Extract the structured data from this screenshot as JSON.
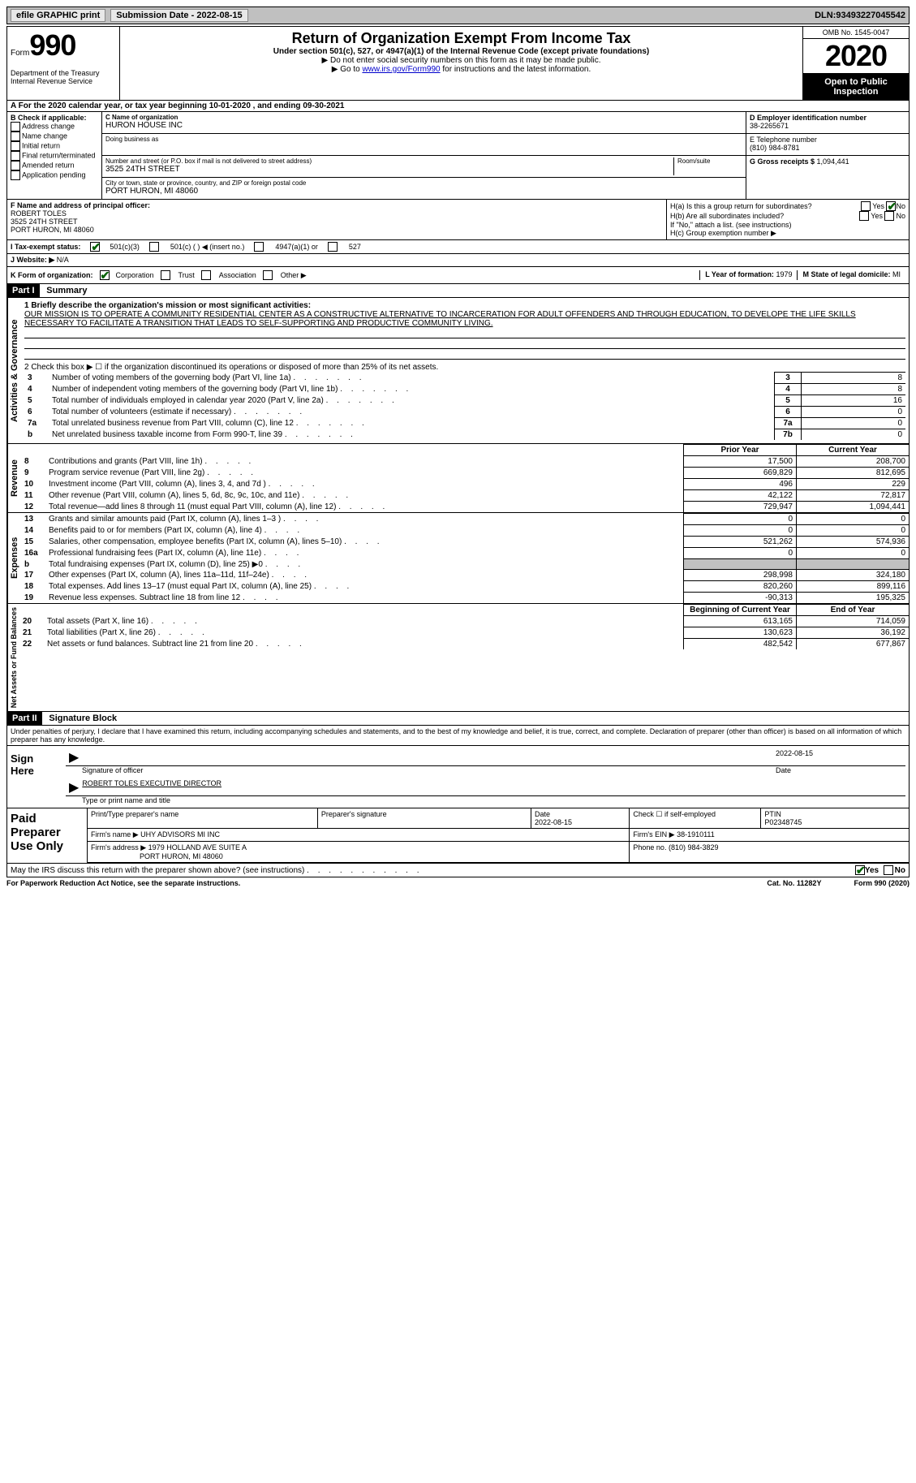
{
  "topbar": {
    "efile": "efile GRAPHIC print",
    "submission_label": "Submission Date - ",
    "submission_date": "2022-08-15",
    "dln_label": "DLN: ",
    "dln": "93493227045542"
  },
  "header": {
    "form_word": "Form",
    "form_num": "990",
    "dept": "Department of the Treasury\nInternal Revenue Service",
    "title": "Return of Organization Exempt From Income Tax",
    "subtitle": "Under section 501(c), 527, or 4947(a)(1) of the Internal Revenue Code (except private foundations)",
    "note1": "▶ Do not enter social security numbers on this form as it may be made public.",
    "note2_pre": "▶ Go to ",
    "note2_link": "www.irs.gov/Form990",
    "note2_post": " for instructions and the latest information.",
    "omb": "OMB No. 1545-0047",
    "year": "2020",
    "inspect": "Open to Public Inspection"
  },
  "rowA": "A For the 2020 calendar year, or tax year beginning 10-01-2020   , and ending 09-30-2021",
  "sectionB": {
    "header": "B Check if applicable:",
    "items": [
      "Address change",
      "Name change",
      "Initial return",
      "Final return/terminated",
      "Amended return",
      "Application pending"
    ],
    "c_label": "C Name of organization",
    "c_name": "HURON HOUSE INC",
    "dba_label": "Doing business as",
    "dba": "",
    "addr_label": "Number and street (or P.O. box if mail is not delivered to street address)",
    "room_label": "Room/suite",
    "addr": "3525 24TH STREET",
    "city_label": "City or town, state or province, country, and ZIP or foreign postal code",
    "city": "PORT HURON, MI  48060",
    "d_label": "D Employer identification number",
    "d_ein": "38-2265671",
    "e_label": "E Telephone number",
    "e_phone": "(810) 984-8781",
    "g_label": "G Gross receipts $ ",
    "g_amount": "1,094,441"
  },
  "sectionF": {
    "f_label": "F Name and address of principal officer:",
    "f_name": "ROBERT TOLES",
    "f_addr1": "3525 24TH STREET",
    "f_addr2": "PORT HURON, MI  48060",
    "ha_label": "H(a)  Is this a group return for subordinates?",
    "ha_yes": "Yes",
    "ha_no": "No",
    "hb_label": "H(b)  Are all subordinates included?",
    "hb_note": "If \"No,\" attach a list. (see instructions)",
    "hc_label": "H(c)  Group exemption number ▶"
  },
  "rowI": {
    "label": "I  Tax-exempt status:",
    "opt1": "501(c)(3)",
    "opt2": "501(c) (  ) ◀ (insert no.)",
    "opt3": "4947(a)(1) or",
    "opt4": "527"
  },
  "rowJ": {
    "label": "J  Website: ▶",
    "value": "N/A"
  },
  "rowK": {
    "label": "K Form of organization:",
    "opts": [
      "Corporation",
      "Trust",
      "Association",
      "Other ▶"
    ],
    "l_label": "L Year of formation: ",
    "l_val": "1979",
    "m_label": "M State of legal domicile: ",
    "m_val": "MI"
  },
  "part1": {
    "tag": "Part I",
    "title": "Summary",
    "vlabel1": "Activities & Governance",
    "line1_label": "1  Briefly describe the organization's mission or most significant activities:",
    "mission": "OUR MISSION IS TO OPERATE A COMMUNITY RESIDENTIAL CENTER AS A CONSTRUCTIVE ALTERNATIVE TO INCARCERATION FOR ADULT OFFENDERS AND THROUGH EDUCATION, TO DEVELOPE THE LIFE SKILLS NECESSARY TO FACILITATE A TRANSITION THAT LEADS TO SELF-SUPPORTING AND PRODUCTIVE COMMUNITY LIVING.",
    "line2": "2   Check this box ▶ ☐  if the organization discontinued its operations or disposed of more than 25% of its net assets.",
    "gov_rows": [
      {
        "n": "3",
        "desc": "Number of voting members of the governing body (Part VI, line 1a)",
        "lbl": "3",
        "val": "8"
      },
      {
        "n": "4",
        "desc": "Number of independent voting members of the governing body (Part VI, line 1b)",
        "lbl": "4",
        "val": "8"
      },
      {
        "n": "5",
        "desc": "Total number of individuals employed in calendar year 2020 (Part V, line 2a)",
        "lbl": "5",
        "val": "16"
      },
      {
        "n": "6",
        "desc": "Total number of volunteers (estimate if necessary)",
        "lbl": "6",
        "val": "0"
      },
      {
        "n": "7a",
        "desc": "Total unrelated business revenue from Part VIII, column (C), line 12",
        "lbl": "7a",
        "val": "0"
      },
      {
        "n": "b",
        "desc": "Net unrelated business taxable income from Form 990-T, line 39",
        "lbl": "7b",
        "val": "0"
      }
    ],
    "col_prior": "Prior Year",
    "col_current": "Current Year",
    "vlabel2": "Revenue",
    "rev_rows": [
      {
        "n": "8",
        "desc": "Contributions and grants (Part VIII, line 1h)",
        "p": "17,500",
        "c": "208,700"
      },
      {
        "n": "9",
        "desc": "Program service revenue (Part VIII, line 2g)",
        "p": "669,829",
        "c": "812,695"
      },
      {
        "n": "10",
        "desc": "Investment income (Part VIII, column (A), lines 3, 4, and 7d )",
        "p": "496",
        "c": "229"
      },
      {
        "n": "11",
        "desc": "Other revenue (Part VIII, column (A), lines 5, 6d, 8c, 9c, 10c, and 11e)",
        "p": "42,122",
        "c": "72,817"
      },
      {
        "n": "12",
        "desc": "Total revenue—add lines 8 through 11 (must equal Part VIII, column (A), line 12)",
        "p": "729,947",
        "c": "1,094,441"
      }
    ],
    "vlabel3": "Expenses",
    "exp_rows": [
      {
        "n": "13",
        "desc": "Grants and similar amounts paid (Part IX, column (A), lines 1–3 )",
        "p": "0",
        "c": "0"
      },
      {
        "n": "14",
        "desc": "Benefits paid to or for members (Part IX, column (A), line 4)",
        "p": "0",
        "c": "0"
      },
      {
        "n": "15",
        "desc": "Salaries, other compensation, employee benefits (Part IX, column (A), lines 5–10)",
        "p": "521,262",
        "c": "574,936"
      },
      {
        "n": "16a",
        "desc": "Professional fundraising fees (Part IX, column (A), line 11e)",
        "p": "0",
        "c": "0"
      },
      {
        "n": "b",
        "desc": "Total fundraising expenses (Part IX, column (D), line 25) ▶0",
        "p": "grey",
        "c": "grey"
      },
      {
        "n": "17",
        "desc": "Other expenses (Part IX, column (A), lines 11a–11d, 11f–24e)",
        "p": "298,998",
        "c": "324,180"
      },
      {
        "n": "18",
        "desc": "Total expenses. Add lines 13–17 (must equal Part IX, column (A), line 25)",
        "p": "820,260",
        "c": "899,116"
      },
      {
        "n": "19",
        "desc": "Revenue less expenses. Subtract line 18 from line 12",
        "p": "-90,313",
        "c": "195,325"
      }
    ],
    "vlabel4": "Net Assets or Fund Balances",
    "col_begin": "Beginning of Current Year",
    "col_end": "End of Year",
    "net_rows": [
      {
        "n": "20",
        "desc": "Total assets (Part X, line 16)",
        "p": "613,165",
        "c": "714,059"
      },
      {
        "n": "21",
        "desc": "Total liabilities (Part X, line 26)",
        "p": "130,623",
        "c": "36,192"
      },
      {
        "n": "22",
        "desc": "Net assets or fund balances. Subtract line 21 from line 20",
        "p": "482,542",
        "c": "677,867"
      }
    ]
  },
  "part2": {
    "tag": "Part II",
    "title": "Signature Block",
    "perjury": "Under penalties of perjury, I declare that I have examined this return, including accompanying schedules and statements, and to the best of my knowledge and belief, it is true, correct, and complete. Declaration of preparer (other than officer) is based on all information of which preparer has any knowledge.",
    "sign_here": "Sign Here",
    "sig_officer": "Signature of officer",
    "sig_date_label": "Date",
    "sig_date": "2022-08-15",
    "sig_name": "ROBERT TOLES EXECUTIVE DIRECTOR",
    "sig_type": "Type or print name and title",
    "paid_label": "Paid Preparer Use Only",
    "prep_name_label": "Print/Type preparer's name",
    "prep_sig_label": "Preparer's signature",
    "prep_date_label": "Date",
    "prep_date": "2022-08-15",
    "prep_check_label": "Check ☐ if self-employed",
    "ptin_label": "PTIN",
    "ptin": "P02348745",
    "firm_name_label": "Firm's name    ▶",
    "firm_name": "UHY ADVISORS MI INC",
    "firm_ein_label": "Firm's EIN ▶",
    "firm_ein": "38-1910111",
    "firm_addr_label": "Firm's address ▶",
    "firm_addr1": "1979 HOLLAND AVE SUITE A",
    "firm_addr2": "PORT HURON, MI  48060",
    "firm_phone_label": "Phone no. ",
    "firm_phone": "(810) 984-3829",
    "discuss": "May the IRS discuss this return with the preparer shown above? (see instructions)",
    "discuss_yes": "Yes",
    "discuss_no": "No"
  },
  "footer": {
    "left": "For Paperwork Reduction Act Notice, see the separate instructions.",
    "mid": "Cat. No. 11282Y",
    "right": "Form 990 (2020)"
  }
}
